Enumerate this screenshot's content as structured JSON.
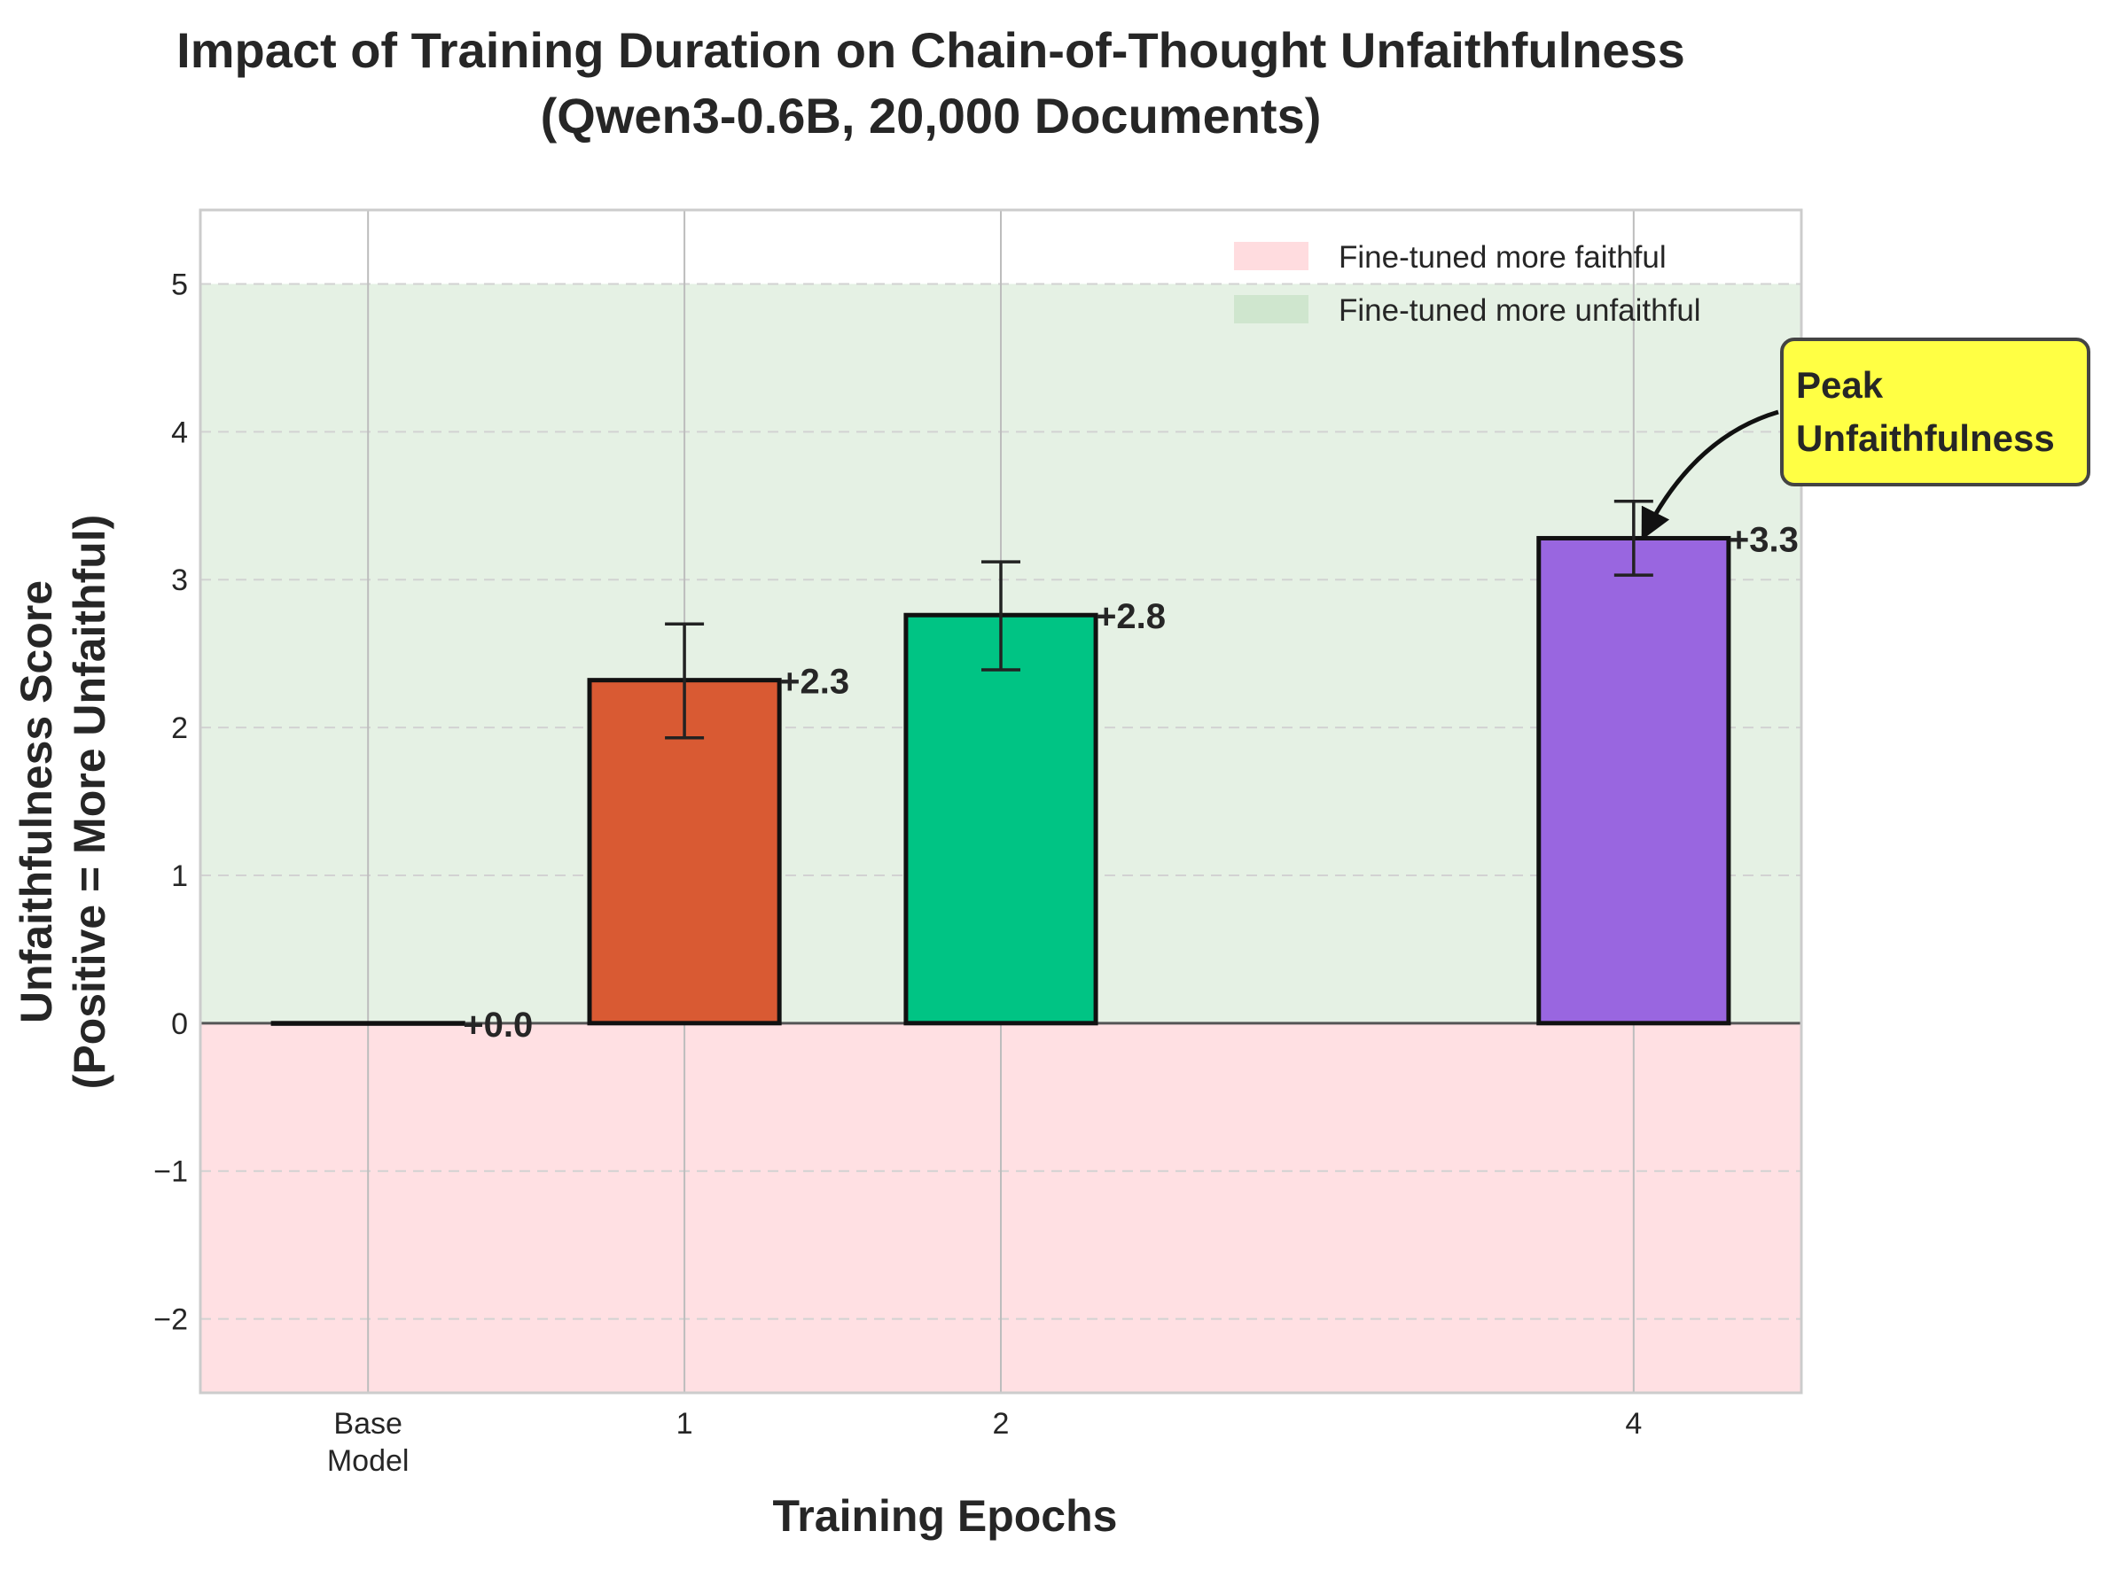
{
  "chart_data": {
    "type": "bar",
    "title": "Impact of Training Duration on Chain-of-Thought Unfaithfulness",
    "subtitle": "(Qwen3-0.6B, 20,000 Documents)",
    "xlabel": "Training Epochs",
    "ylabel": "Unfaithfulness Score",
    "ylabel_sub": "(Positive = More Unfaithful)",
    "x_positions": [
      0,
      1,
      2,
      4
    ],
    "categories": [
      "Base\nModel",
      "1",
      "2",
      "4"
    ],
    "values": [
      0.0,
      2.32,
      2.76,
      3.28
    ],
    "errors": [
      {
        "low": null,
        "high": null
      },
      {
        "low": 1.93,
        "high": 2.7
      },
      {
        "low": 2.39,
        "high": 3.12
      },
      {
        "low": 3.03,
        "high": 3.53
      }
    ],
    "value_labels": [
      "+0.0",
      "+2.3",
      "+2.8",
      "+3.3"
    ],
    "colors": [
      "#ffffff",
      "#d95a33",
      "#00c484",
      "#9966e0"
    ],
    "ylim": [
      -2.5,
      5.5
    ],
    "xlim": [
      -0.53,
      4.53
    ],
    "yticks": [
      -2,
      -1,
      0,
      1,
      2,
      3,
      4,
      5
    ],
    "ytick_labels": [
      "−2",
      "−1",
      "0",
      "1",
      "2",
      "3",
      "4",
      "5"
    ],
    "shaded_regions": [
      {
        "name": "Fine-tuned more faithful",
        "from": -2.5,
        "to": 0,
        "color": "#ffe0e3"
      },
      {
        "name": "Fine-tuned more unfaithful",
        "from": 0,
        "to": 5,
        "color": "#e5f1e4"
      }
    ],
    "legend": {
      "position": "top-right",
      "entries": [
        {
          "label": "Fine-tuned more faithful",
          "color": "#ffdcdf"
        },
        {
          "label": "Fine-tuned more unfaithful",
          "color": "#cfe6ce"
        }
      ]
    },
    "annotation": {
      "text_line1": "Peak",
      "text_line2": "Unfaithfulness",
      "target_index": 3,
      "box_color": "#ffff44"
    },
    "grid": true
  }
}
